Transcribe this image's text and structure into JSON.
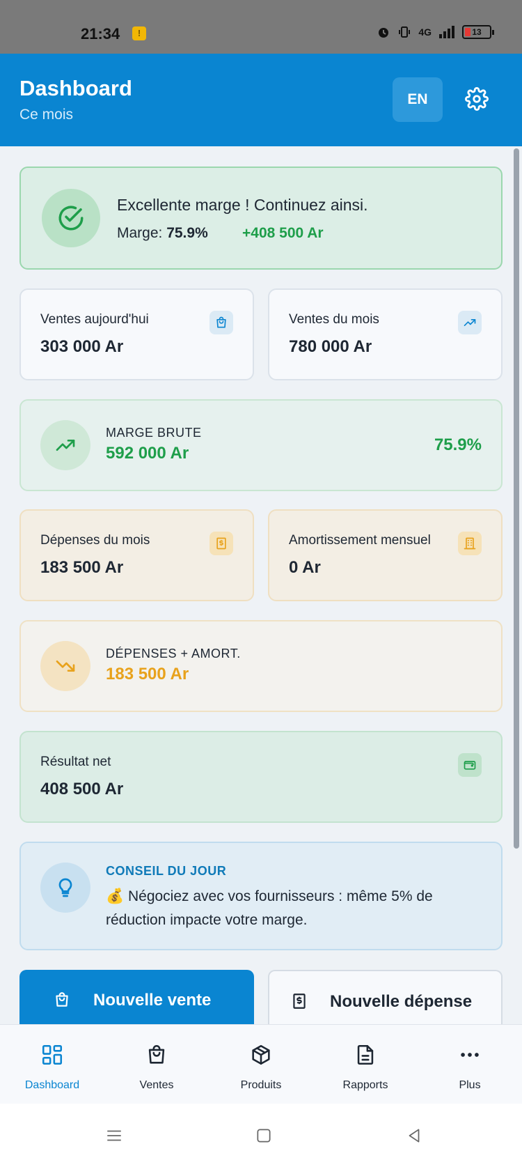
{
  "status_bar": {
    "time": "21:34",
    "network": "4G",
    "battery": "13"
  },
  "header": {
    "title": "Dashboard",
    "subtitle": "Ce mois",
    "lang_button": "EN"
  },
  "banner": {
    "message": "Excellente marge ! Continuez ainsi.",
    "marge_label": "Marge:",
    "marge_value": "75.9%",
    "gain": "+408 500 Ar"
  },
  "ventes_today": {
    "label": "Ventes aujourd'hui",
    "value": "303 000 Ar"
  },
  "ventes_month": {
    "label": "Ventes du mois",
    "value": "780 000 Ar"
  },
  "marge_brute": {
    "label": "MARGE BRUTE",
    "value": "592 000 Ar",
    "percent": "75.9%"
  },
  "depenses_month": {
    "label": "Dépenses du mois",
    "value": "183 500 Ar"
  },
  "amortissement": {
    "label": "Amortissement mensuel",
    "value": "0 Ar"
  },
  "depenses_amort": {
    "label": "DÉPENSES + AMORT.",
    "value": "183 500 Ar"
  },
  "resultat_net": {
    "label": "Résultat net",
    "value": "408 500 Ar"
  },
  "tip": {
    "title": "CONSEIL DU JOUR",
    "text": "💰 Négociez avec vos fournisseurs : même 5% de réduction impacte votre marge."
  },
  "actions": {
    "new_sale": "Nouvelle vente",
    "new_expense": "Nouvelle dépense"
  },
  "bottom_nav": [
    {
      "label": "Dashboard",
      "icon": "grid-icon",
      "active": true
    },
    {
      "label": "Ventes",
      "icon": "bag-icon"
    },
    {
      "label": "Produits",
      "icon": "box-icon"
    },
    {
      "label": "Rapports",
      "icon": "document-icon"
    },
    {
      "label": "Plus",
      "icon": "more-icon"
    }
  ],
  "colors": {
    "primary": "#0a85d1",
    "success": "#1e9e4a",
    "warning": "#e8a21c"
  }
}
